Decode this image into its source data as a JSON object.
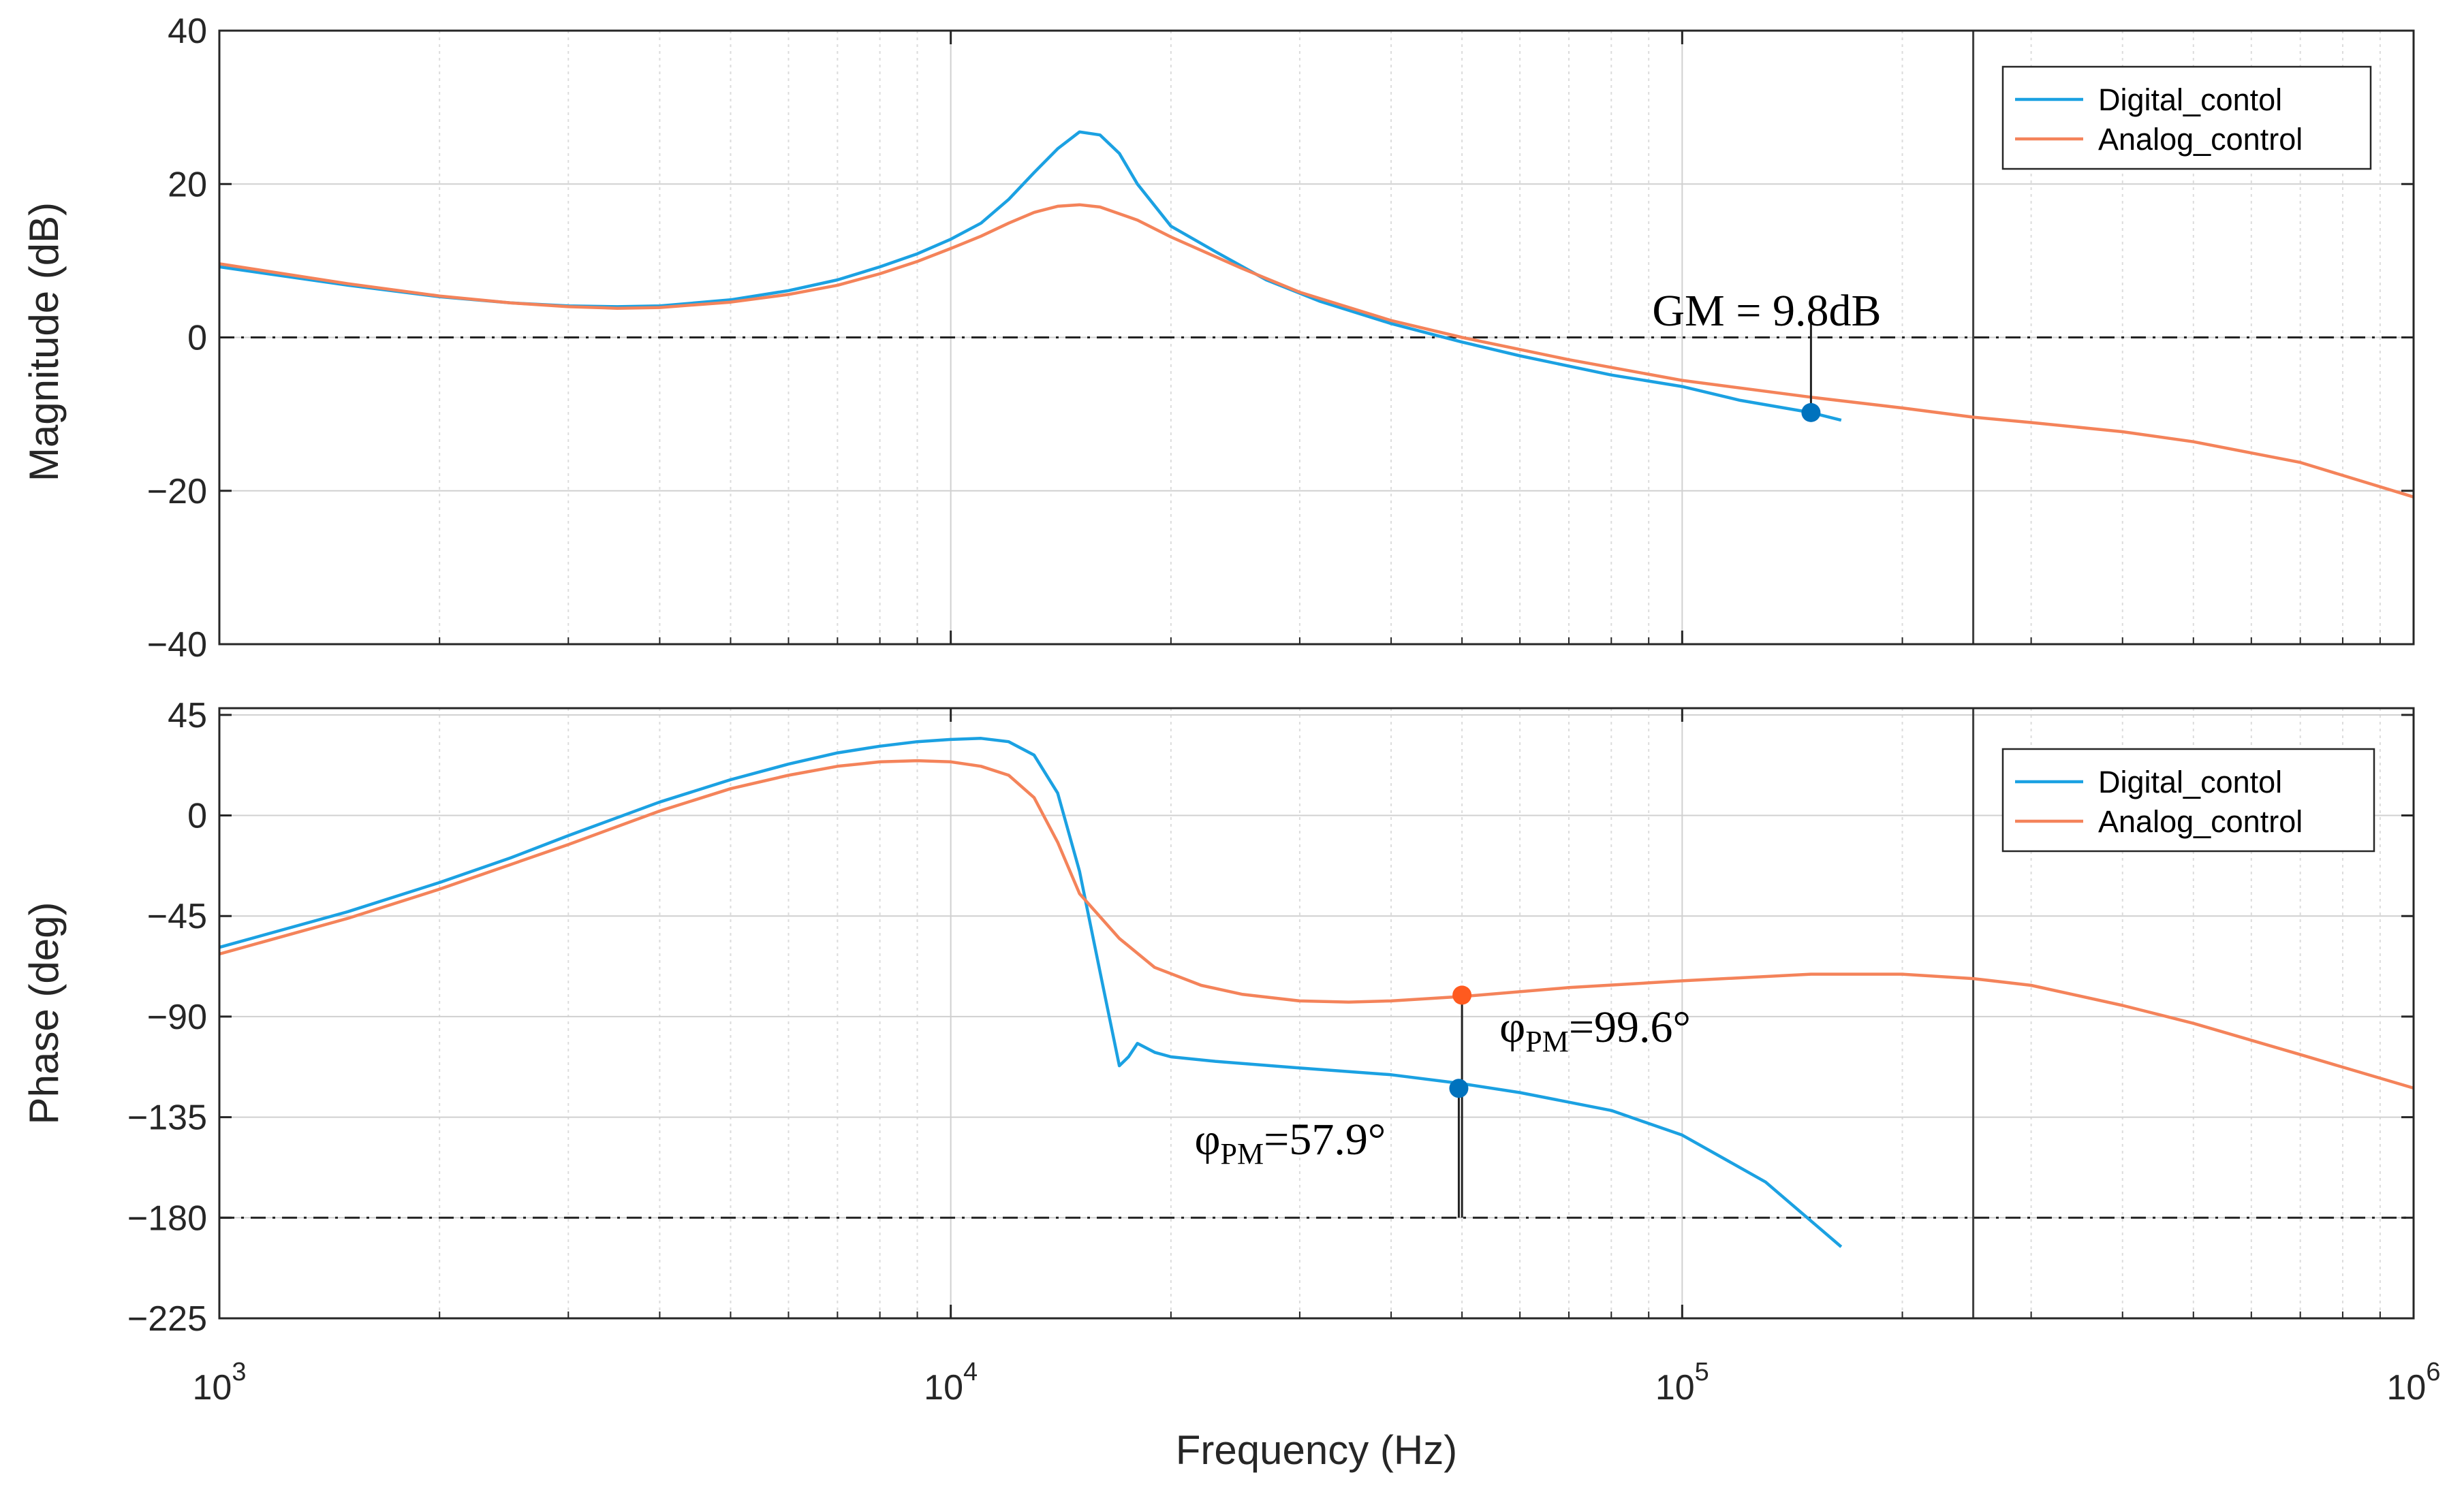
{
  "chart_data": {
    "type": "line",
    "title": "",
    "xlabel": "Frequency  (Hz)",
    "x_scale": "log",
    "xlim": [
      1000,
      1000000
    ],
    "x_ticks": [
      {
        "value": 1000,
        "base": "10",
        "exp": "3"
      },
      {
        "value": 10000,
        "base": "10",
        "exp": "4"
      },
      {
        "value": 100000,
        "base": "10",
        "exp": "5"
      },
      {
        "value": 1000000,
        "base": "10",
        "exp": "6"
      }
    ],
    "colors": {
      "digital": "#1ba1e2",
      "analog": "#f4835a",
      "marker_blue": "#0072bd",
      "marker_orange": "#ff5a1f"
    },
    "vertical_marker_x": 250000,
    "panels": [
      {
        "id": "magnitude",
        "ylabel": "Magnitude (dB)",
        "ylim": [
          -40,
          40
        ],
        "yticks": [
          40,
          20,
          0,
          -20,
          -40
        ],
        "ytick_labels": [
          "40",
          "20",
          "0",
          "−20",
          "−40"
        ],
        "reference_line_y": 0,
        "legend": {
          "position": "top-right",
          "entries": [
            "Digital_contol",
            "Analog_control"
          ]
        },
        "series": [
          {
            "name": "Digital_contol",
            "color_key": "digital",
            "points": [
              [
                1000,
                9.2
              ],
              [
                1500,
                6.8
              ],
              [
                2000,
                5.3
              ],
              [
                2500,
                4.5
              ],
              [
                3000,
                4.1
              ],
              [
                3500,
                4.0
              ],
              [
                4000,
                4.1
              ],
              [
                5000,
                4.9
              ],
              [
                6000,
                6.1
              ],
              [
                7000,
                7.5
              ],
              [
                8000,
                9.2
              ],
              [
                9000,
                10.9
              ],
              [
                10000,
                12.8
              ],
              [
                11000,
                14.9
              ],
              [
                12000,
                18.0
              ],
              [
                13000,
                21.5
              ],
              [
                14000,
                24.6
              ],
              [
                15000,
                26.8
              ],
              [
                16000,
                26.4
              ],
              [
                17000,
                24.0
              ],
              [
                18000,
                20.0
              ],
              [
                20000,
                14.5
              ],
              [
                23000,
                11.2
              ],
              [
                27000,
                7.5
              ],
              [
                32000,
                4.7
              ],
              [
                40000,
                1.8
              ],
              [
                50000,
                -0.6
              ],
              [
                60000,
                -2.4
              ],
              [
                80000,
                -4.9
              ],
              [
                100000,
                -6.4
              ],
              [
                120000,
                -8.2
              ],
              [
                150000,
                -9.8
              ],
              [
                165000,
                -10.8
              ]
            ]
          },
          {
            "name": "Analog_control",
            "color_key": "analog",
            "points": [
              [
                1000,
                9.6
              ],
              [
                1500,
                7.0
              ],
              [
                2000,
                5.4
              ],
              [
                2500,
                4.5
              ],
              [
                3000,
                4.0
              ],
              [
                3500,
                3.8
              ],
              [
                4000,
                3.9
              ],
              [
                5000,
                4.6
              ],
              [
                6000,
                5.6
              ],
              [
                7000,
                6.8
              ],
              [
                8000,
                8.3
              ],
              [
                9000,
                9.9
              ],
              [
                10000,
                11.6
              ],
              [
                11000,
                13.2
              ],
              [
                12000,
                14.9
              ],
              [
                13000,
                16.3
              ],
              [
                14000,
                17.1
              ],
              [
                15000,
                17.3
              ],
              [
                16000,
                17.0
              ],
              [
                18000,
                15.3
              ],
              [
                20000,
                13.1
              ],
              [
                25000,
                9.0
              ],
              [
                30000,
                5.9
              ],
              [
                40000,
                2.2
              ],
              [
                50000,
                0.0
              ],
              [
                70000,
                -2.9
              ],
              [
                100000,
                -5.6
              ],
              [
                150000,
                -7.8
              ],
              [
                200000,
                -9.2
              ],
              [
                250000,
                -10.4
              ],
              [
                300000,
                -11.1
              ],
              [
                400000,
                -12.3
              ],
              [
                500000,
                -13.6
              ],
              [
                700000,
                -16.3
              ],
              [
                1000000,
                -20.8
              ]
            ]
          }
        ],
        "markers": [
          {
            "x": 150000,
            "y": -9.8,
            "color_key": "marker_blue"
          }
        ],
        "annotations": [
          {
            "text": "GM = 9.8dB",
            "x": 150000,
            "y": -9.8
          }
        ]
      },
      {
        "id": "phase",
        "ylabel": "Phase (deg)",
        "ylim": [
          -225,
          48
        ],
        "yticks": [
          45,
          0,
          -45,
          -90,
          -135,
          -180,
          -225
        ],
        "ytick_labels": [
          "45",
          "0",
          "−45",
          "−90",
          "−135",
          "−180",
          "−225"
        ],
        "reference_line_y": -180,
        "legend": {
          "position": "top-right",
          "entries": [
            "Digital_contol",
            "Analog_control"
          ]
        },
        "series": [
          {
            "name": "Digital_contol",
            "color_key": "digital",
            "points": [
              [
                1000,
                -59
              ],
              [
                1500,
                -43
              ],
              [
                2000,
                -30
              ],
              [
                2500,
                -19
              ],
              [
                3000,
                -9
              ],
              [
                4000,
                6
              ],
              [
                5000,
                16
              ],
              [
                6000,
                23
              ],
              [
                7000,
                28
              ],
              [
                8000,
                31
              ],
              [
                9000,
                33
              ],
              [
                10000,
                34
              ],
              [
                11000,
                34.5
              ],
              [
                12000,
                33
              ],
              [
                13000,
                27
              ],
              [
                14000,
                10
              ],
              [
                15000,
                -25
              ],
              [
                16000,
                -70
              ],
              [
                17000,
                -112
              ],
              [
                17500,
                -108
              ],
              [
                18000,
                -102
              ],
              [
                19000,
                -106
              ],
              [
                20000,
                -108
              ],
              [
                23000,
                -110
              ],
              [
                30000,
                -113
              ],
              [
                40000,
                -116
              ],
              [
                50000,
                -120
              ],
              [
                60000,
                -124
              ],
              [
                80000,
                -132
              ],
              [
                100000,
                -143
              ],
              [
                130000,
                -164
              ],
              [
                165000,
                -193
              ]
            ]
          },
          {
            "name": "Analog_control",
            "color_key": "analog",
            "points": [
              [
                1000,
                -62
              ],
              [
                1500,
                -46
              ],
              [
                2000,
                -33
              ],
              [
                2500,
                -22
              ],
              [
                3000,
                -13
              ],
              [
                4000,
                2
              ],
              [
                5000,
                12
              ],
              [
                6000,
                18
              ],
              [
                7000,
                22
              ],
              [
                8000,
                24
              ],
              [
                9000,
                24.5
              ],
              [
                10000,
                24
              ],
              [
                11000,
                22
              ],
              [
                12000,
                18
              ],
              [
                13000,
                8
              ],
              [
                14000,
                -12
              ],
              [
                15000,
                -35
              ],
              [
                17000,
                -55
              ],
              [
                19000,
                -68
              ],
              [
                22000,
                -76
              ],
              [
                25000,
                -80
              ],
              [
                30000,
                -83
              ],
              [
                35000,
                -83.5
              ],
              [
                40000,
                -83
              ],
              [
                50000,
                -81
              ],
              [
                70000,
                -77
              ],
              [
                100000,
                -74
              ],
              [
                150000,
                -71
              ],
              [
                200000,
                -71
              ],
              [
                250000,
                -73
              ],
              [
                300000,
                -76
              ],
              [
                400000,
                -85
              ],
              [
                500000,
                -93
              ],
              [
                700000,
                -107
              ],
              [
                1000000,
                -122
              ]
            ]
          }
        ],
        "markers": [
          {
            "x": 50000,
            "y": -80.4,
            "color_key": "marker_orange"
          },
          {
            "x": 49500,
            "y": -122.1,
            "color_key": "marker_blue"
          }
        ],
        "annotations": [
          {
            "symbol": "φ",
            "sub": "PM",
            "value": "=99.6°",
            "x": 50000,
            "y": -80.4
          },
          {
            "symbol": "φ",
            "sub": "PM",
            "value": "=57.9°",
            "x": 49500,
            "y": -122.1
          }
        ]
      }
    ]
  }
}
